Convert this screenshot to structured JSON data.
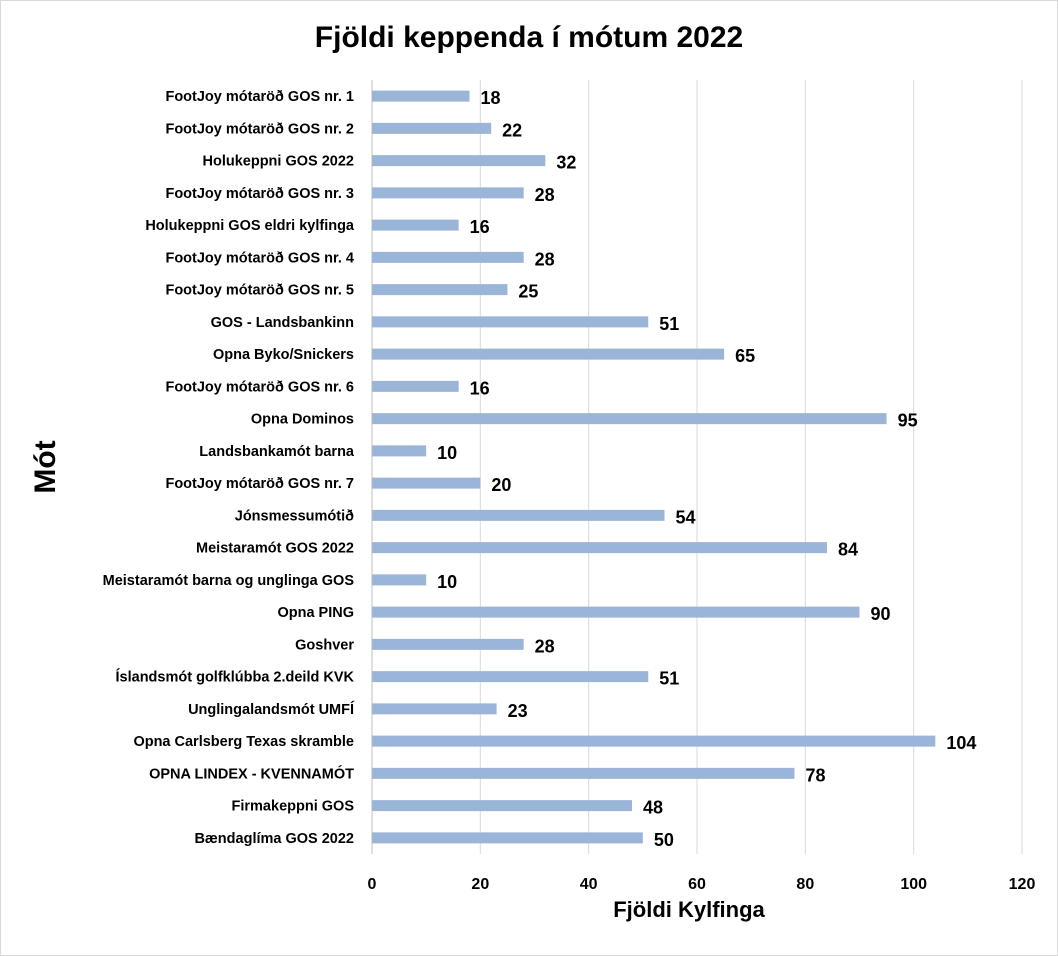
{
  "chart_data": {
    "type": "bar",
    "orientation": "horizontal",
    "title": "Fjöldi keppenda í mótum 2022",
    "xlabel": "Fjöldi Kylfinga",
    "ylabel": "Mót",
    "xlim": [
      0,
      120
    ],
    "xticks": [
      0,
      20,
      40,
      60,
      80,
      100,
      120
    ],
    "grid": true,
    "bar_color": "#9bb5d9",
    "categories": [
      "FootJoy mótaröð GOS nr. 1",
      "FootJoy mótaröð GOS nr. 2",
      "Holukeppni GOS 2022",
      "FootJoy mótaröð GOS nr. 3",
      "Holukeppni GOS eldri kylfinga",
      "FootJoy mótaröð GOS nr. 4",
      "FootJoy mótaröð GOS nr. 5",
      "GOS - Landsbankinn",
      "Opna Byko/Snickers",
      "FootJoy mótaröð GOS nr. 6",
      "Opna Dominos",
      "Landsbankamót barna",
      "FootJoy mótaröð GOS nr. 7",
      "Jónsmessumótið",
      "Meistaramót GOS 2022",
      "Meistaramót barna og unglinga GOS",
      "Opna PING",
      "Goshver",
      "Íslandsmót golfklúbba 2.deild KVK",
      "Unglingalandsmót UMFÍ",
      "Opna Carlsberg Texas skramble",
      "OPNA LINDEX - KVENNAMÓT",
      "Firmakeppni GOS",
      "Bændaglíma GOS 2022"
    ],
    "values": [
      18,
      22,
      32,
      28,
      16,
      28,
      25,
      51,
      65,
      16,
      95,
      10,
      20,
      54,
      84,
      10,
      90,
      28,
      51,
      23,
      104,
      78,
      48,
      50
    ]
  }
}
